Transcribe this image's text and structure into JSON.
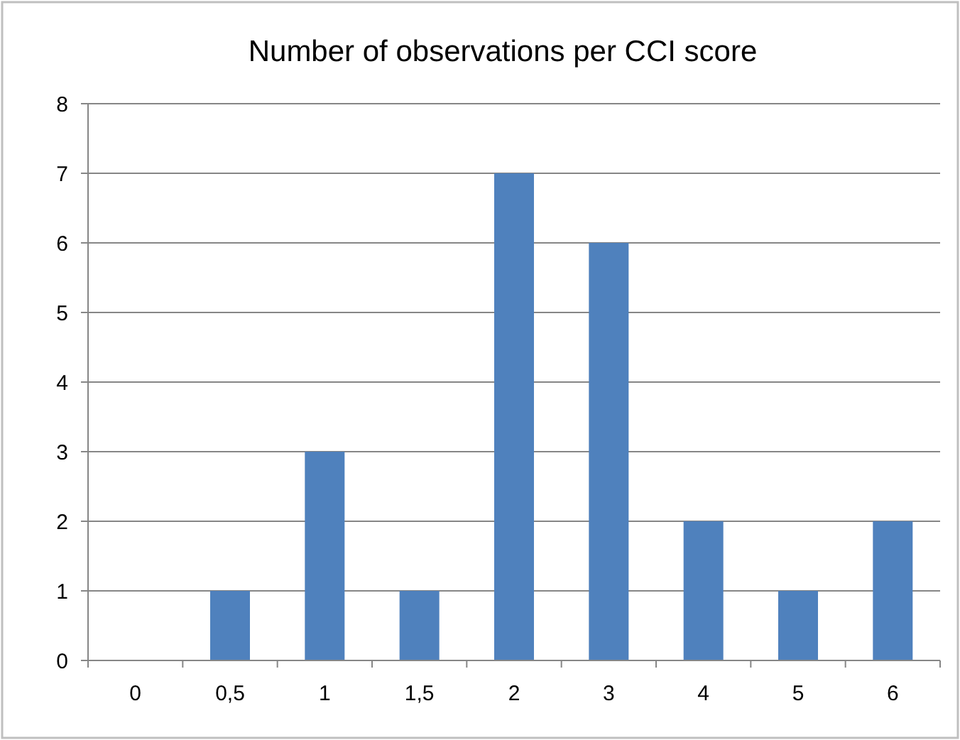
{
  "chart_data": {
    "type": "bar",
    "title": "Number of observations per CCI score",
    "categories": [
      "0",
      "0,5",
      "1",
      "1,5",
      "2",
      "3",
      "4",
      "5",
      "6"
    ],
    "values": [
      0,
      1,
      3,
      1,
      7,
      6,
      2,
      1,
      2
    ],
    "color": "#4f81bd",
    "ylim": [
      0,
      8
    ],
    "yticks": [
      0,
      1,
      2,
      3,
      4,
      5,
      6,
      7,
      8
    ],
    "grid": "y"
  }
}
